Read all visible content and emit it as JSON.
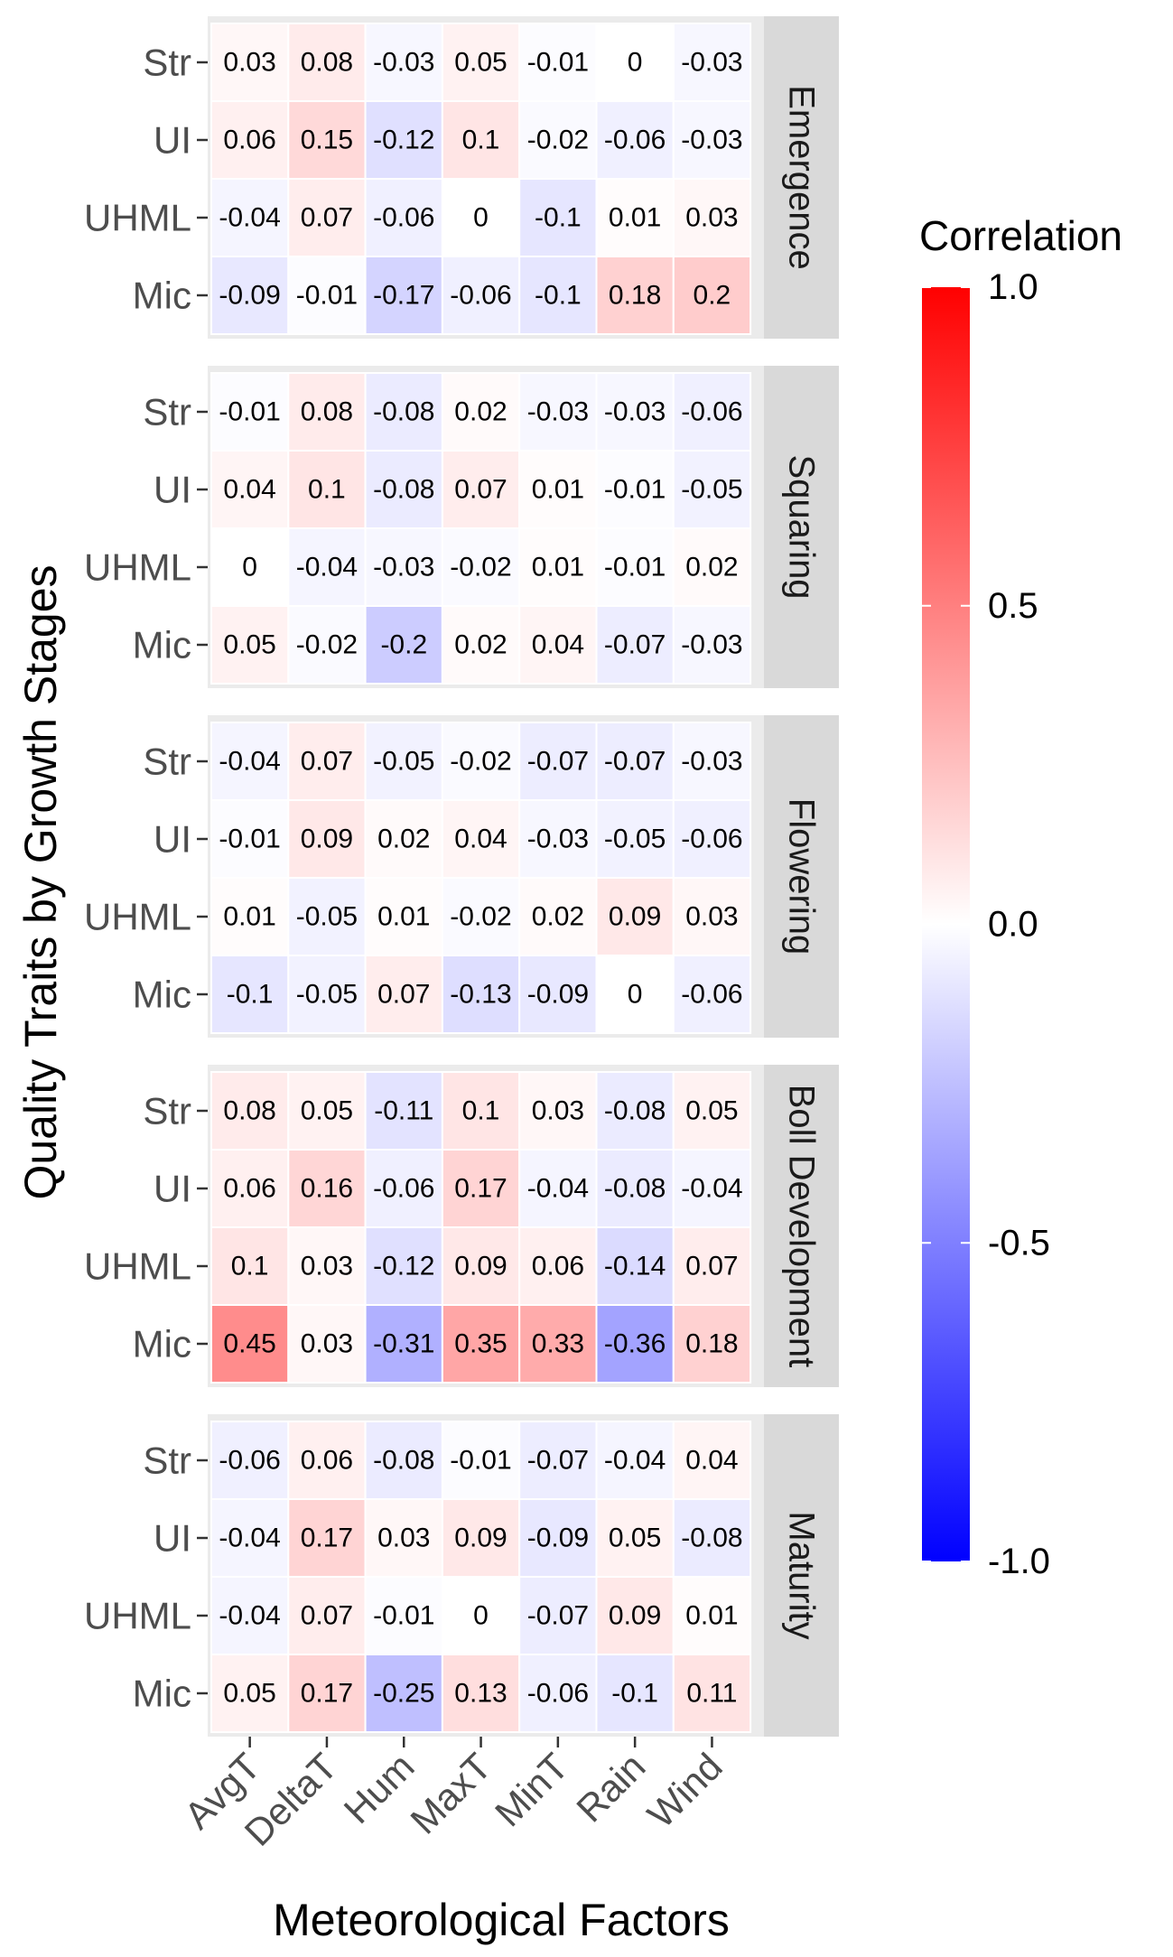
{
  "chart_data": {
    "type": "heatmap",
    "xlabel": "Meteorological Factors",
    "ylabel": "Quality Traits by Growth Stages",
    "x_categories": [
      "AvgT",
      "DeltaT",
      "Hum",
      "MaxT",
      "MinT",
      "Rain",
      "Wind"
    ],
    "y_categories": [
      "Str",
      "UI",
      "UHML",
      "Mic"
    ],
    "legend": {
      "title": "Correlation",
      "range": [
        -1,
        1
      ],
      "ticks": [
        "1.0",
        "0.5",
        "0.0",
        "-0.5",
        "-1.0"
      ],
      "tick_values": [
        1,
        0.5,
        0,
        -0.5,
        -1
      ],
      "low_color": "#0000ff",
      "mid_color": "#ffffff",
      "high_color": "#ff0000"
    },
    "panels": [
      {
        "stage": "Emergence",
        "values": [
          [
            0.03,
            0.08,
            -0.03,
            0.05,
            -0.01,
            0,
            -0.03
          ],
          [
            0.06,
            0.15,
            -0.12,
            0.1,
            -0.02,
            -0.06,
            -0.03
          ],
          [
            -0.04,
            0.07,
            -0.06,
            0,
            -0.1,
            0.01,
            0.03
          ],
          [
            -0.09,
            -0.01,
            -0.17,
            -0.06,
            -0.1,
            0.18,
            0.2
          ]
        ]
      },
      {
        "stage": "Squaring",
        "values": [
          [
            -0.01,
            0.08,
            -0.08,
            0.02,
            -0.03,
            -0.03,
            -0.06
          ],
          [
            0.04,
            0.1,
            -0.08,
            0.07,
            0.01,
            -0.01,
            -0.05
          ],
          [
            0,
            -0.04,
            -0.03,
            -0.02,
            0.01,
            -0.01,
            0.02
          ],
          [
            0.05,
            -0.02,
            -0.2,
            0.02,
            0.04,
            -0.07,
            -0.03
          ]
        ]
      },
      {
        "stage": "Flowering",
        "values": [
          [
            -0.04,
            0.07,
            -0.05,
            -0.02,
            -0.07,
            -0.07,
            -0.03
          ],
          [
            -0.01,
            0.09,
            0.02,
            0.04,
            -0.03,
            -0.05,
            -0.06
          ],
          [
            0.01,
            -0.05,
            0.01,
            -0.02,
            0.02,
            0.09,
            0.03
          ],
          [
            -0.1,
            -0.05,
            0.07,
            -0.13,
            -0.09,
            0,
            -0.06
          ]
        ]
      },
      {
        "stage": "Boll Development",
        "values": [
          [
            0.08,
            0.05,
            -0.11,
            0.1,
            0.03,
            -0.08,
            0.05
          ],
          [
            0.06,
            0.16,
            -0.06,
            0.17,
            -0.04,
            -0.08,
            -0.04
          ],
          [
            0.1,
            0.03,
            -0.12,
            0.09,
            0.06,
            -0.14,
            0.07
          ],
          [
            0.45,
            0.03,
            -0.31,
            0.35,
            0.33,
            -0.36,
            0.18
          ]
        ]
      },
      {
        "stage": "Maturity",
        "values": [
          [
            -0.06,
            0.06,
            -0.08,
            -0.01,
            -0.07,
            -0.04,
            0.04
          ],
          [
            -0.04,
            0.17,
            0.03,
            0.09,
            -0.09,
            0.05,
            -0.08
          ],
          [
            -0.04,
            0.07,
            -0.01,
            0,
            -0.07,
            0.09,
            0.01
          ],
          [
            0.05,
            0.17,
            -0.25,
            0.13,
            -0.06,
            -0.1,
            0.11
          ]
        ]
      }
    ]
  }
}
